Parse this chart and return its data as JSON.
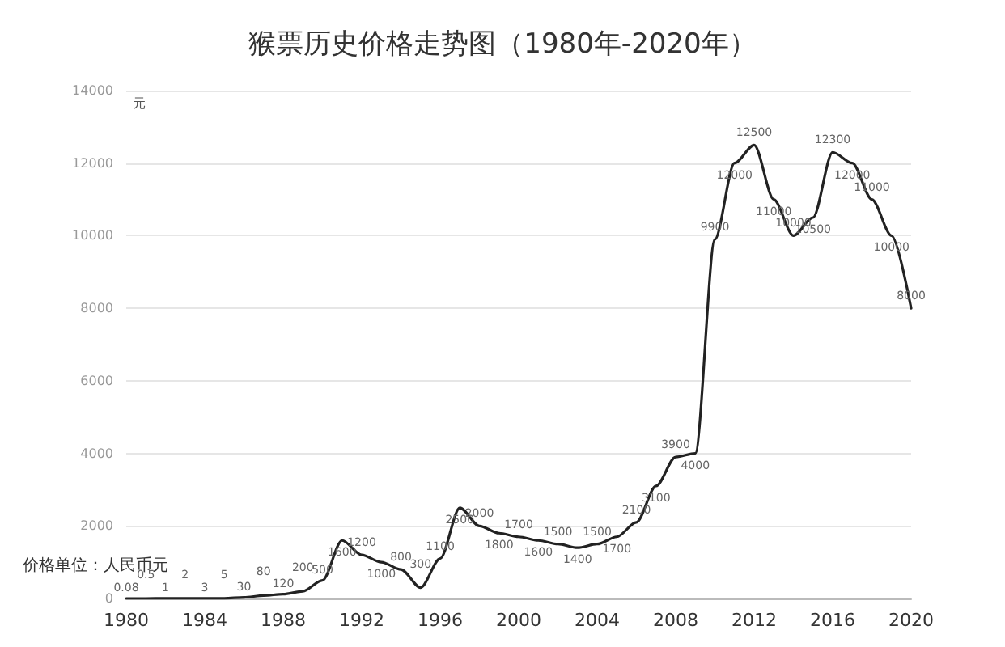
{
  "chart_data": {
    "type": "line",
    "title": "猴票历史价格走势图（1980年-2020年）",
    "ylabel": "元",
    "annotations": [
      "价格单位：人民币元"
    ],
    "x": [
      1980,
      1981,
      1982,
      1983,
      1984,
      1985,
      1986,
      1987,
      1988,
      1989,
      1990,
      1991,
      1992,
      1993,
      1994,
      1995,
      1996,
      1997,
      1998,
      1999,
      2000,
      2001,
      2002,
      2003,
      2004,
      2005,
      2006,
      2007,
      2008,
      2009,
      2010,
      2011,
      2012,
      2013,
      2014,
      2015,
      2016,
      2017,
      2018,
      2019,
      2020
    ],
    "values": [
      0.08,
      0.5,
      1,
      2,
      3,
      5,
      30,
      80,
      120,
      200,
      500,
      1600,
      1200,
      1000,
      800,
      300,
      1100,
      2500,
      2000,
      1800,
      1700,
      1600,
      1500,
      1400,
      1500,
      1700,
      2100,
      3100,
      3900,
      4000,
      9900,
      12000,
      12500,
      11000,
      10000,
      10500,
      12300,
      12000,
      11000,
      10000,
      8000
    ],
    "color": "#222222",
    "data_labels": true,
    "marker": "none",
    "line_style": "solid",
    "grid": "y",
    "xlim": [
      1980,
      2020
    ],
    "xticks": [
      1980,
      1984,
      1988,
      1992,
      1996,
      2000,
      2004,
      2008,
      2012,
      2016,
      2020
    ],
    "ylim": [
      0,
      14000
    ],
    "yticks": [
      0,
      2000,
      4000,
      6000,
      8000,
      10000,
      12000,
      14000
    ]
  }
}
